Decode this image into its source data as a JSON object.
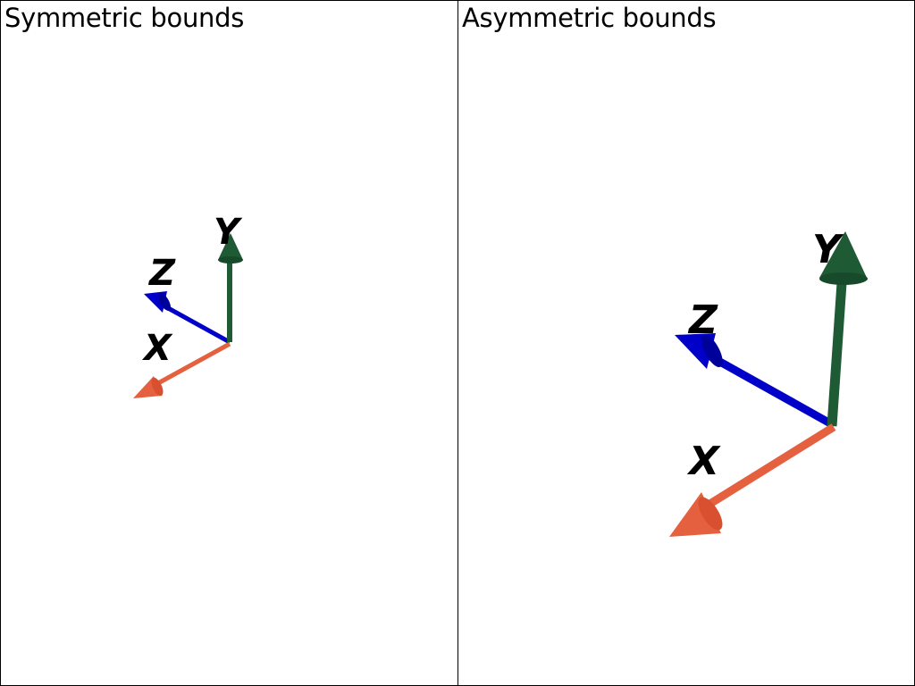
{
  "viewports": {
    "left": {
      "title": "Symmetric bounds",
      "axes": {
        "x": {
          "label": "X",
          "color": "#e4603f"
        },
        "y": {
          "label": "Y",
          "color": "#1e5a34"
        },
        "z": {
          "label": "Z",
          "color": "#0000c8"
        }
      }
    },
    "right": {
      "title": "Asymmetric bounds",
      "axes": {
        "x": {
          "label": "X",
          "color": "#e4603f"
        },
        "y": {
          "label": "Y",
          "color": "#1e5a34"
        },
        "z": {
          "label": "Z",
          "color": "#0000c8"
        }
      }
    }
  },
  "colors": {
    "background": "#ffffff",
    "border": "#000000"
  }
}
